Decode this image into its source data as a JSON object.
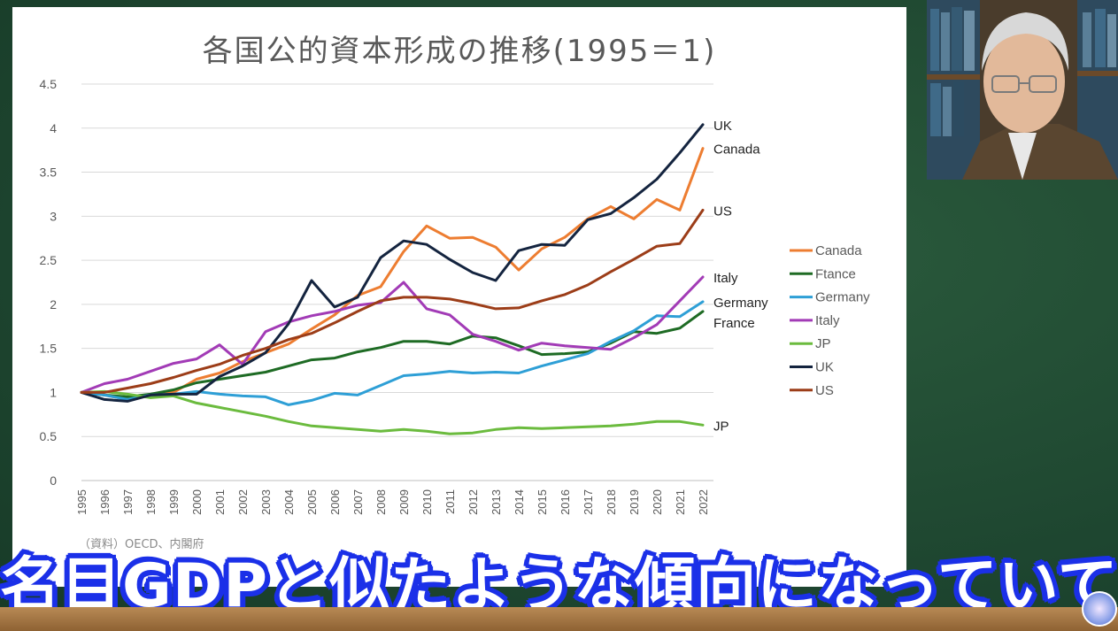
{
  "chart_data": {
    "type": "line",
    "title": "各国公的資本形成の推移(1995＝1)",
    "x": [
      "1995",
      "1996",
      "1997",
      "1998",
      "1999",
      "2000",
      "2001",
      "2002",
      "2003",
      "2004",
      "2005",
      "2006",
      "2007",
      "2008",
      "2009",
      "2010",
      "2011",
      "2012",
      "2013",
      "2014",
      "2015",
      "2016",
      "2017",
      "2018",
      "2019",
      "2020",
      "2021",
      "2022"
    ],
    "ylim": [
      0,
      4.5
    ],
    "yticks": [
      "0",
      "0.5",
      "1",
      "1.5",
      "2",
      "2.5",
      "3",
      "3.5",
      "4",
      "4.5"
    ],
    "grid": true,
    "legend_position": "right",
    "series": [
      {
        "name": "Canada",
        "color": "#ED7D31",
        "values": [
          1.0,
          0.97,
          0.92,
          0.97,
          1.0,
          1.15,
          1.22,
          1.35,
          1.45,
          1.55,
          1.72,
          1.88,
          2.1,
          2.2,
          2.6,
          2.89,
          2.75,
          2.76,
          2.65,
          2.39,
          2.63,
          2.76,
          2.97,
          3.11,
          2.97,
          3.19,
          3.07,
          3.77
        ]
      },
      {
        "name": "Ftance",
        "color": "#1E6B24",
        "values": [
          1.0,
          0.97,
          0.95,
          0.98,
          1.03,
          1.11,
          1.15,
          1.19,
          1.23,
          1.3,
          1.37,
          1.39,
          1.46,
          1.51,
          1.58,
          1.58,
          1.55,
          1.64,
          1.62,
          1.53,
          1.43,
          1.44,
          1.46,
          1.56,
          1.69,
          1.67,
          1.73,
          1.92
        ]
      },
      {
        "name": "Germany",
        "color": "#2E9FD6",
        "values": [
          1.0,
          0.97,
          0.92,
          0.97,
          0.98,
          1.01,
          0.98,
          0.96,
          0.95,
          0.86,
          0.91,
          0.99,
          0.97,
          1.08,
          1.19,
          1.21,
          1.24,
          1.22,
          1.23,
          1.22,
          1.3,
          1.37,
          1.44,
          1.58,
          1.7,
          1.87,
          1.86,
          2.03
        ]
      },
      {
        "name": "Italy",
        "color": "#A23BB6",
        "values": [
          1.0,
          1.1,
          1.15,
          1.24,
          1.33,
          1.38,
          1.54,
          1.32,
          1.69,
          1.8,
          1.87,
          1.92,
          1.99,
          2.02,
          2.25,
          1.95,
          1.88,
          1.66,
          1.58,
          1.48,
          1.56,
          1.53,
          1.51,
          1.49,
          1.62,
          1.77,
          2.04,
          2.31
        ]
      },
      {
        "name": "JP",
        "color": "#6BBB3E",
        "values": [
          1.0,
          1.01,
          0.98,
          0.94,
          0.96,
          0.88,
          0.83,
          0.78,
          0.73,
          0.67,
          0.62,
          0.6,
          0.58,
          0.56,
          0.58,
          0.56,
          0.53,
          0.54,
          0.58,
          0.6,
          0.59,
          0.6,
          0.61,
          0.62,
          0.64,
          0.67,
          0.67,
          0.63
        ]
      },
      {
        "name": "UK",
        "color": "#14243F",
        "values": [
          1.0,
          0.92,
          0.9,
          0.97,
          0.98,
          0.98,
          1.18,
          1.3,
          1.45,
          1.78,
          2.27,
          1.97,
          2.08,
          2.53,
          2.72,
          2.68,
          2.51,
          2.36,
          2.27,
          2.61,
          2.68,
          2.67,
          2.96,
          3.03,
          3.21,
          3.42,
          3.72,
          4.04
        ]
      },
      {
        "name": "US",
        "color": "#9C3D18",
        "values": [
          1.0,
          1.0,
          1.05,
          1.1,
          1.17,
          1.25,
          1.32,
          1.42,
          1.5,
          1.6,
          1.67,
          1.79,
          1.92,
          2.04,
          2.08,
          2.08,
          2.06,
          2.01,
          1.95,
          1.96,
          2.04,
          2.11,
          2.22,
          2.37,
          2.51,
          2.66,
          2.69,
          3.07
        ]
      }
    ],
    "end_labels": [
      {
        "text": "UK",
        "series": "UK"
      },
      {
        "text": "Canada",
        "series": "Canada"
      },
      {
        "text": "US",
        "series": "US"
      },
      {
        "text": "Italy",
        "series": "Italy"
      },
      {
        "text": "Germany",
        "series": "Germany"
      },
      {
        "text": "France",
        "series": "Ftance"
      },
      {
        "text": "JP",
        "series": "JP"
      }
    ]
  },
  "source_note": "（資料）OECD、内閣府",
  "subtitle": "名目GDPと似たような傾向になっていて"
}
